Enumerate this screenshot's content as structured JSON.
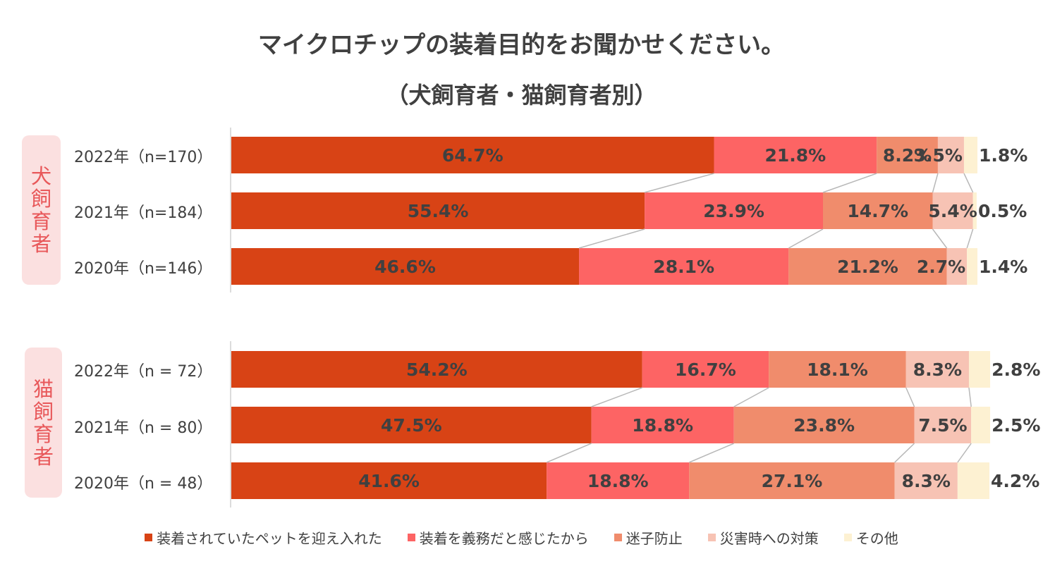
{
  "title": "マイクロチップの装着目的をお聞かせください。",
  "subtitle": "（犬飼育者・猫飼育者別）",
  "colors": [
    "#d84315",
    "#fd6464",
    "#f08c6c",
    "#f7c3b4",
    "#fdf1d2"
  ],
  "chart_data": {
    "type": "bar",
    "orientation": "horizontal-stacked-100",
    "series_names": [
      "装着されていたペットを迎え入れた",
      "装着を義務だと感じたから",
      "迷子防止",
      "災害時への対策",
      "その他"
    ],
    "groups": [
      {
        "name": "犬飼育者",
        "rows": [
          {
            "label": "2022年（n=170）",
            "values": [
              64.7,
              21.8,
              8.2,
              3.5,
              1.8
            ],
            "labels": [
              "64.7%",
              "21.8%",
              "8.2%",
              "3.5%",
              "1.8%"
            ]
          },
          {
            "label": "2021年（n=184）",
            "values": [
              55.4,
              23.9,
              14.7,
              5.4,
              0.5
            ],
            "labels": [
              "55.4%",
              "23.9%",
              "14.7%",
              "5.4%",
              "0.5%"
            ]
          },
          {
            "label": "2020年（n=146）",
            "values": [
              46.6,
              28.1,
              21.2,
              2.7,
              1.4
            ],
            "labels": [
              "46.6%",
              "28.1%",
              "21.2%",
              "2.7%",
              "1.4%"
            ]
          }
        ]
      },
      {
        "name": "猫飼育者",
        "rows": [
          {
            "label": "2022年（n = 72）",
            "values": [
              54.2,
              16.7,
              18.1,
              8.3,
              2.8
            ],
            "labels": [
              "54.2%",
              "16.7%",
              "18.1%",
              "8.3%",
              "2.8%"
            ]
          },
          {
            "label": "2021年（n = 80）",
            "values": [
              47.5,
              18.8,
              23.8,
              7.5,
              2.5
            ],
            "labels": [
              "47.5%",
              "18.8%",
              "23.8%",
              "7.5%",
              "2.5%"
            ]
          },
          {
            "label": "2020年（n = 48）",
            "values": [
              41.6,
              18.8,
              27.1,
              8.3,
              4.2
            ],
            "labels": [
              "41.6%",
              "18.8%",
              "27.1%",
              "8.3%",
              "4.2%"
            ]
          }
        ]
      }
    ]
  }
}
